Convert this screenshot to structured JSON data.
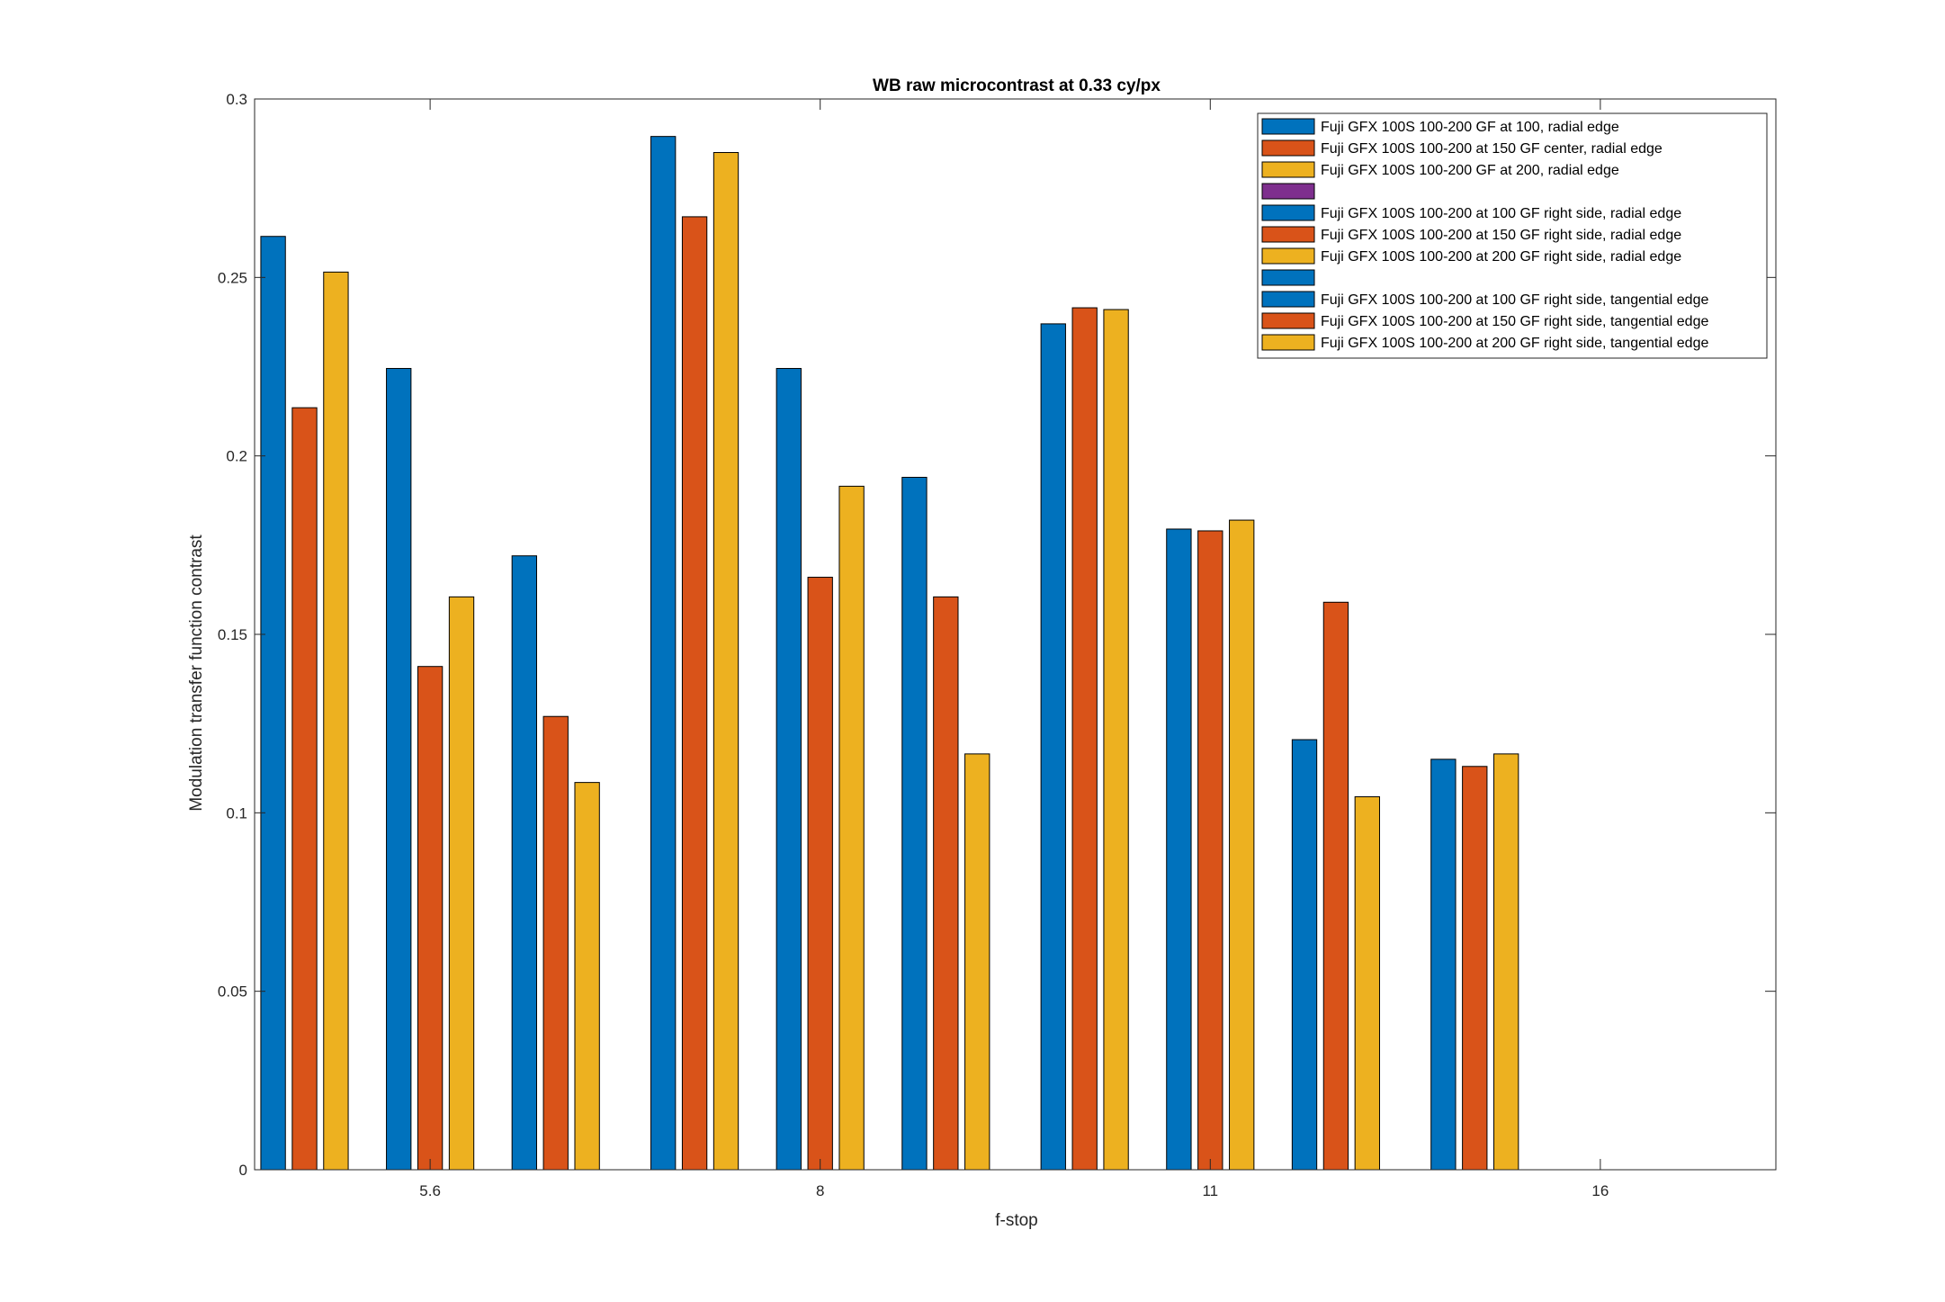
{
  "chart_data": {
    "type": "bar",
    "title": "WB raw  microcontrast at 0.33 cy/px",
    "xlabel": "f-stop",
    "ylabel": "Modulation transfer function contrast",
    "ylim": [
      0,
      0.3
    ],
    "yticks": [
      "0",
      "0.05",
      "0.1",
      "0.15",
      "0.2",
      "0.25",
      "0.3"
    ],
    "xlim": [
      0.55,
      4.45
    ],
    "xticks": [
      {
        "label": "5.6",
        "value": 1
      },
      {
        "label": "8",
        "value": 2
      },
      {
        "label": "11",
        "value": 3
      },
      {
        "label": "16",
        "value": 4
      }
    ],
    "grid": false,
    "legend_position": "top-right",
    "groups": [
      {
        "x": 1,
        "series": [
          0,
          1,
          2,
          4,
          5,
          6,
          8,
          9,
          10
        ],
        "values": [
          0.2615,
          0.2135,
          0.2515,
          0.2245,
          0.141,
          0.1605,
          0.172,
          0.127,
          0.1085
        ]
      },
      {
        "x": 2,
        "series": [
          0,
          1,
          2,
          4,
          5,
          6,
          8,
          9,
          10
        ],
        "values": [
          0.2895,
          0.267,
          0.285,
          0.2245,
          0.166,
          0.1915,
          0.194,
          0.1605,
          0.1165
        ]
      },
      {
        "x": 3,
        "series": [
          0,
          1,
          2,
          4,
          5,
          6,
          8,
          9,
          10
        ],
        "values": [
          0.237,
          0.2415,
          0.241,
          0.1795,
          0.179,
          0.182,
          0.1205,
          0.159,
          0.1045
        ]
      },
      {
        "x": 4,
        "series": [
          0,
          1,
          2
        ],
        "values": [
          0.115,
          0.113,
          0.1165
        ]
      }
    ],
    "series": [
      {
        "name": "Fuji GFX 100S 100-200 GF at 100, radial edge",
        "color": "#0072BD"
      },
      {
        "name": "Fuji GFX 100S 100-200 at 150 GF center, radial edge",
        "color": "#D95319"
      },
      {
        "name": "Fuji GFX 100S 100-200 GF at 200, radial edge",
        "color": "#EDB120"
      },
      {
        "name": "",
        "color": "#7E2F8E"
      },
      {
        "name": "Fuji GFX 100S 100-200 at 100 GF right side, radial edge",
        "color": "#0072BD"
      },
      {
        "name": "Fuji GFX 100S 100-200 at 150 GF right side, radial edge",
        "color": "#D95319"
      },
      {
        "name": "Fuji GFX 100S 100-200 at 200 GF right side, radial edge",
        "color": "#EDB120"
      },
      {
        "name": "",
        "color": "#0072BD"
      },
      {
        "name": "Fuji GFX 100S 100-200 at 100 GF right side, tangential edge",
        "color": "#0072BD"
      },
      {
        "name": "Fuji GFX 100S 100-200 at 150 GF right side, tangential edge",
        "color": "#D95319"
      },
      {
        "name": "Fuji GFX 100S 100-200 at 200 GF right side, tangential edge",
        "color": "#EDB120"
      }
    ]
  }
}
